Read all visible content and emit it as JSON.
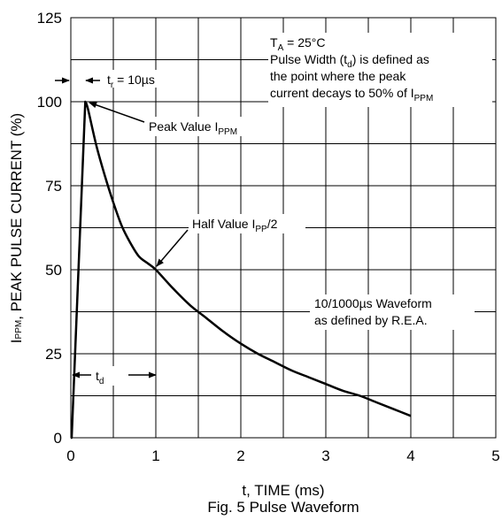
{
  "chart_data": {
    "type": "line",
    "title": "Fig. 5 Pulse Waveform",
    "xlabel": "t, TIME (ms)",
    "ylabel": {
      "pre": "I",
      "sub": "PPM",
      "post": ", PEAK PULSE CURRENT (%)"
    },
    "xlim": [
      0,
      5
    ],
    "ylim": [
      0,
      125
    ],
    "xticks": [
      "0",
      "1",
      "2",
      "3",
      "4",
      "5"
    ],
    "yticks": [
      "0",
      "25",
      "50",
      "75",
      "100",
      "125"
    ],
    "grid": true,
    "legend": "none",
    "series": [
      {
        "x": [
          0,
          0.01,
          0.17,
          0.2,
          0.3,
          0.4,
          0.5,
          0.6,
          0.7,
          0.8,
          0.9,
          1.0,
          1.2,
          1.4,
          1.6,
          1.8,
          2.0,
          2.2,
          2.4,
          2.6,
          2.8,
          3.0,
          3.2,
          3.4,
          3.6,
          3.8,
          4.0
        ],
        "y": [
          0,
          0,
          100,
          98,
          87,
          78,
          70,
          63,
          58,
          54,
          52,
          50,
          44.5,
          39.5,
          35.5,
          31.5,
          28,
          25,
          22.5,
          20,
          18,
          16,
          14,
          12.5,
          10.5,
          8.5,
          6.5
        ]
      }
    ],
    "annotations": {
      "ta": {
        "pre": "T",
        "sub": "A",
        "post": " = 25°C"
      },
      "pw1": {
        "pre": "Pulse Width (t",
        "sub": "d",
        "post": ") is defined as"
      },
      "pw2": "the point where the peak",
      "pw3": {
        "pre": "current decays to 50% of I",
        "sub": "PPM"
      },
      "tr": {
        "pre": "t",
        "sub": "r",
        "post": " = 10µs"
      },
      "peak": {
        "pre": "Peak Value I",
        "sub": "PPM"
      },
      "half": {
        "pre": "Half Value I",
        "sub": "PP",
        "post": "/2"
      },
      "td": {
        "pre": "t",
        "sub": "d"
      },
      "wave1": "10/1000µs Waveform",
      "wave2": "as defined by R.E.A."
    }
  }
}
